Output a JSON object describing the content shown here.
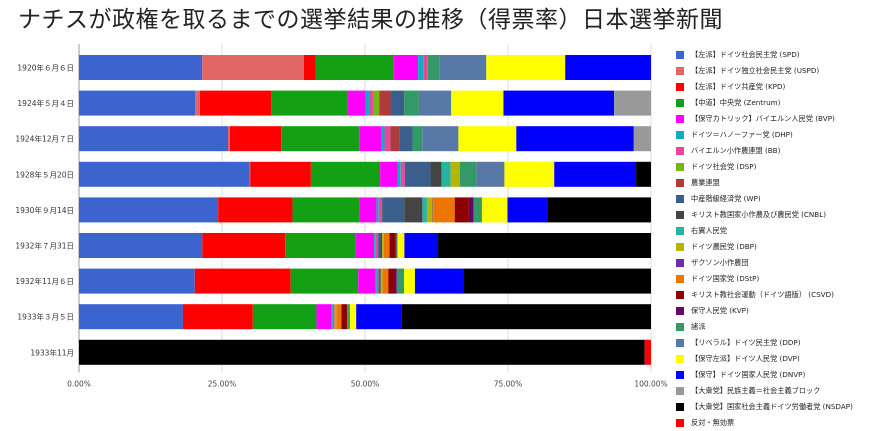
{
  "title": "ナチスが政権を取るまでの選挙結果の推移（得票率）日本選挙新聞",
  "chart_data": {
    "type": "bar",
    "stacked": true,
    "orientation": "horizontal",
    "xlim": [
      0,
      100
    ],
    "grid": true,
    "legend_position": "right",
    "x_tick_labels": [
      "0.00%",
      "25.00%",
      "50.00%",
      "75.00%",
      "100.00%"
    ],
    "categories": [
      "1920年６月６日",
      "1924年５月４日",
      "1924年12月７日",
      "1928年５月20日",
      "1930年９月14日",
      "1932年７月31日",
      "1932年11月６日",
      "1933年３月５日",
      "1933年11月"
    ],
    "series": [
      {
        "name": "【左派】ドイツ社会民主党 (SPD)",
        "color": "#3b64cf",
        "values": [
          21.7,
          20.5,
          26.0,
          29.8,
          24.5,
          21.6,
          20.4,
          18.3,
          0
        ]
      },
      {
        "name": "【左派】ドイツ独立社会民主党 (USPD)",
        "color": "#e06666",
        "values": [
          17.9,
          0.8,
          0.3,
          0.1,
          0.03,
          0,
          0,
          0,
          0
        ]
      },
      {
        "name": "【左派】ドイツ共産党 (KPD)",
        "color": "#ff0000",
        "values": [
          2.1,
          12.6,
          9.0,
          10.6,
          13.1,
          14.5,
          16.9,
          12.3,
          0
        ]
      },
      {
        "name": "【中道】中央党 (Zentrum)",
        "color": "#14a014",
        "values": [
          13.6,
          13.4,
          13.6,
          12.1,
          11.8,
          12.4,
          11.9,
          11.2,
          0
        ]
      },
      {
        "name": "【保守カトリック】バイエルン人民党 (BVP)",
        "color": "#ff00ff",
        "values": [
          4.4,
          3.2,
          3.8,
          3.1,
          3.0,
          3.2,
          3.1,
          2.7,
          0
        ]
      },
      {
        "name": "ドイツ＝ハノーファー党 (DHP)",
        "color": "#0eadbf",
        "values": [
          0.9,
          0.6,
          0.6,
          0.5,
          0.4,
          0.3,
          0.2,
          0.2,
          0
        ]
      },
      {
        "name": "バイエルン小作農連盟 (BB)",
        "color": "#e8479a",
        "values": [
          0.8,
          0.7,
          1.0,
          0.7,
          0.6,
          0.4,
          0.3,
          0.3,
          0
        ]
      },
      {
        "name": "ドイツ社会党 (DSP)",
        "color": "#78b414",
        "values": [
          0,
          1.1,
          0,
          0,
          0,
          0,
          0,
          0,
          0
        ]
      },
      {
        "name": "農業連盟",
        "color": "#b03a3a",
        "values": [
          0,
          2.0,
          1.6,
          0,
          0,
          0,
          0,
          0,
          0
        ]
      },
      {
        "name": "中産階級経済党 (WP)",
        "color": "#3c5e8c",
        "values": [
          0,
          2.4,
          2.3,
          4.5,
          3.9,
          0.4,
          0.3,
          0,
          0
        ]
      },
      {
        "name": "キリスト教国家小作農及び農民党 (CNBL)",
        "color": "#444444",
        "values": [
          0,
          0,
          0,
          1.9,
          3.2,
          0.3,
          0.1,
          0,
          0
        ]
      },
      {
        "name": "右翼人民党",
        "color": "#26b5a0",
        "values": [
          0,
          0,
          0,
          1.6,
          0.8,
          0,
          0,
          0,
          0
        ]
      },
      {
        "name": "ドイツ農民党 (DBP)",
        "color": "#b5b500",
        "values": [
          0,
          0,
          0,
          1.6,
          1.0,
          0.3,
          0.3,
          0.3,
          0
        ]
      },
      {
        "name": "ザクソン小作農団",
        "color": "#6a2fb0",
        "values": [
          0,
          0,
          0,
          0,
          0.1,
          0,
          0,
          0,
          0
        ]
      },
      {
        "name": "ドイツ国家党 (DStP)",
        "color": "#ec7700",
        "values": [
          0,
          0,
          0,
          0,
          3.8,
          1.0,
          1.0,
          0.9,
          0
        ]
      },
      {
        "name": "キリスト教社会運動（ドイツ語版） (CSVD)",
        "color": "#8b0000",
        "values": [
          0,
          0,
          0,
          0,
          2.5,
          1.0,
          1.1,
          1.0,
          0
        ]
      },
      {
        "name": "保守人民党 (KVP)",
        "color": "#6b006b",
        "values": [
          0,
          0,
          0,
          0,
          0.8,
          0.2,
          0.4,
          0,
          0
        ]
      },
      {
        "name": "諸派",
        "color": "#339966",
        "values": [
          2.0,
          2.6,
          1.7,
          2.9,
          1.5,
          0.2,
          1.3,
          0.5,
          0
        ]
      },
      {
        "name": "【リベラル】ドイツ民主党 (DDP)",
        "color": "#5878a8",
        "values": [
          8.3,
          5.7,
          6.3,
          4.9,
          0,
          0,
          0,
          0,
          0
        ]
      },
      {
        "name": "【保守左派】ドイツ人民党 (DVP)",
        "color": "#ffff00",
        "values": [
          13.9,
          9.2,
          10.1,
          8.7,
          4.5,
          1.2,
          1.9,
          1.1,
          0
        ]
      },
      {
        "name": "【保守】ドイツ国家人民党 (DNVP)",
        "color": "#0000ff",
        "values": [
          15.1,
          19.5,
          20.5,
          14.3,
          7.0,
          5.9,
          8.5,
          8.0,
          0
        ]
      },
      {
        "name": "【大衆党】民族主義＝社会主義ブロック",
        "color": "#999999",
        "values": [
          0,
          6.5,
          3.0,
          0,
          0,
          0,
          0,
          0,
          0
        ]
      },
      {
        "name": "【大衆党】国家社会主義ドイツ労働者党 (NSDAP)",
        "color": "#000000",
        "values": [
          0,
          0,
          0,
          2.6,
          18.3,
          37.3,
          33.1,
          43.9,
          98.9
        ]
      },
      {
        "name": "反対・無効票",
        "color": "#ff0000",
        "values": [
          0,
          0,
          0,
          0,
          0,
          0,
          0,
          0,
          1.1
        ]
      }
    ]
  }
}
